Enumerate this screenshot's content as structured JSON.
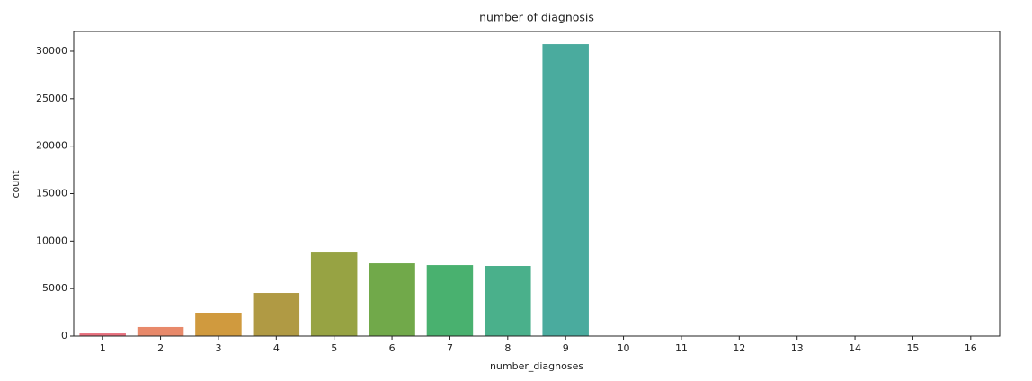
{
  "chart_data": {
    "type": "bar",
    "title": "number of diagnosis",
    "x_label": "number_diagnoses",
    "y_label": "count",
    "categories": [
      "1",
      "2",
      "3",
      "4",
      "5",
      "6",
      "7",
      "8",
      "9",
      "10",
      "11",
      "12",
      "13",
      "14",
      "15",
      "16"
    ],
    "values": [
      280,
      950,
      2460,
      4540,
      8890,
      7660,
      7470,
      7380,
      30750,
      40,
      20,
      15,
      10,
      5,
      5,
      5
    ],
    "colors": [
      "#e8707e",
      "#e8896a",
      "#d09a3e",
      "#b09a44",
      "#97a343",
      "#71a94a",
      "#49b16f",
      "#4ab08b",
      "#4aab9e",
      "#4baaab",
      "#4ea7bd",
      "#59a3cd",
      "#8d97d8",
      "#b08bdb",
      "#d67ad0",
      "#e46cb6"
    ],
    "ylim": [
      0,
      32080
    ],
    "yticks": [
      0,
      5000,
      10000,
      15000,
      20000,
      25000,
      30000
    ],
    "grid": false
  }
}
